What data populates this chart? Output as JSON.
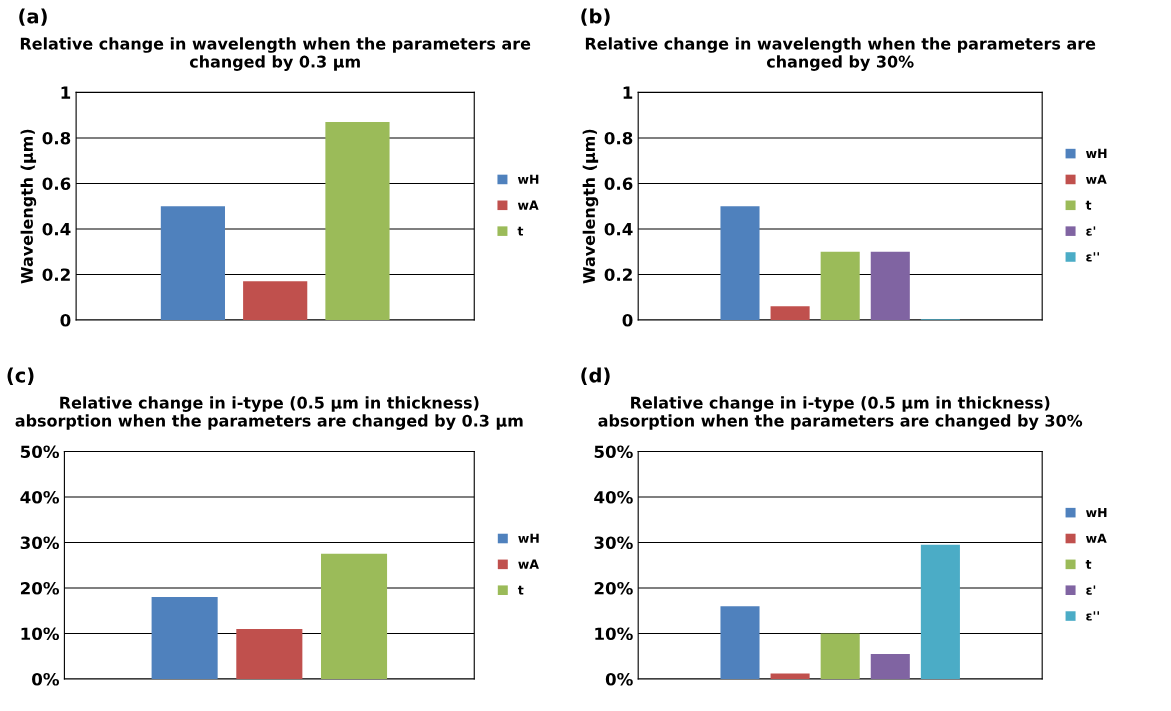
{
  "chart_data": [
    {
      "type": "bar",
      "title": "Relative change in wavelength when the parameters are\nchanged by 0.3 µm",
      "ylabel": "Wavelength (µm)",
      "annotations": [
        "(a)"
      ],
      "categories": [
        null
      ],
      "series": [
        {
          "name": "wH",
          "color": "#4f81bd",
          "values": [
            0.5
          ]
        },
        {
          "name": "wA",
          "color": "#c0504d",
          "values": [
            0.17
          ]
        },
        {
          "name": "t",
          "color": "#9bbb59",
          "values": [
            0.87
          ]
        }
      ],
      "ylim": [
        0,
        1
      ],
      "yticks": [
        0,
        0.2,
        0.4,
        0.6,
        0.8,
        1
      ],
      "grid": "y",
      "legend": "right"
    },
    {
      "type": "bar",
      "title": "Relative change in wavelength when the parameters are\nchanged by 30%",
      "ylabel": "Wavelength (µm)",
      "annotations": [
        "(b)"
      ],
      "categories": [
        null
      ],
      "series": [
        {
          "name": "wH",
          "color": "#4f81bd",
          "values": [
            0.5
          ]
        },
        {
          "name": "wA",
          "color": "#c0504d",
          "values": [
            0.06
          ]
        },
        {
          "name": "t",
          "color": "#9bbb59",
          "values": [
            0.3
          ]
        },
        {
          "name": "ε'",
          "color": "#8064a2",
          "values": [
            0.3
          ]
        },
        {
          "name": "ε''",
          "color": "#4bacc6",
          "values": [
            0.003
          ]
        }
      ],
      "ylim": [
        0,
        1
      ],
      "yticks": [
        0,
        0.2,
        0.4,
        0.6,
        0.8,
        1
      ],
      "grid": "y",
      "legend": "right"
    },
    {
      "type": "bar",
      "title": "Relative change in i-type (0.5 µm in thickness)\nabsorption when the parameters are changed by 0.3 µm",
      "annotations": [
        "(c)"
      ],
      "categories": [
        null
      ],
      "series": [
        {
          "name": "wH",
          "color": "#4f81bd",
          "values": [
            18
          ]
        },
        {
          "name": "wA",
          "color": "#c0504d",
          "values": [
            11
          ]
        },
        {
          "name": "t",
          "color": "#9bbb59",
          "values": [
            27.5
          ]
        }
      ],
      "ylim": [
        0,
        50
      ],
      "yticks": [
        {
          "value": 0,
          "label": "0%"
        },
        {
          "value": 10,
          "label": "10%"
        },
        {
          "value": 20,
          "label": "20%"
        },
        {
          "value": 30,
          "label": "30%"
        },
        {
          "value": 40,
          "label": "40%"
        },
        {
          "value": 50,
          "label": "50%"
        }
      ],
      "grid": "y",
      "legend": "right"
    },
    {
      "type": "bar",
      "title": "Relative change in i-type (0.5 µm in thickness)\nabsorption when the parameters are changed by 30%",
      "annotations": [
        "(d)"
      ],
      "categories": [
        null
      ],
      "series": [
        {
          "name": "wH",
          "color": "#4f81bd",
          "values": [
            16
          ]
        },
        {
          "name": "wA",
          "color": "#c0504d",
          "values": [
            1.2
          ]
        },
        {
          "name": "t",
          "color": "#9bbb59",
          "values": [
            10
          ]
        },
        {
          "name": "ε'",
          "color": "#8064a2",
          "values": [
            5.5
          ]
        },
        {
          "name": "ε''",
          "color": "#4bacc6",
          "values": [
            29.5
          ]
        }
      ],
      "ylim": [
        0,
        50
      ],
      "yticks": [
        {
          "value": 0,
          "label": "0%"
        },
        {
          "value": 10,
          "label": "10%"
        },
        {
          "value": 20,
          "label": "20%"
        },
        {
          "value": 30,
          "label": "30%"
        },
        {
          "value": 40,
          "label": "40%"
        },
        {
          "value": 50,
          "label": "50%"
        }
      ],
      "grid": "y",
      "legend": "right"
    }
  ]
}
